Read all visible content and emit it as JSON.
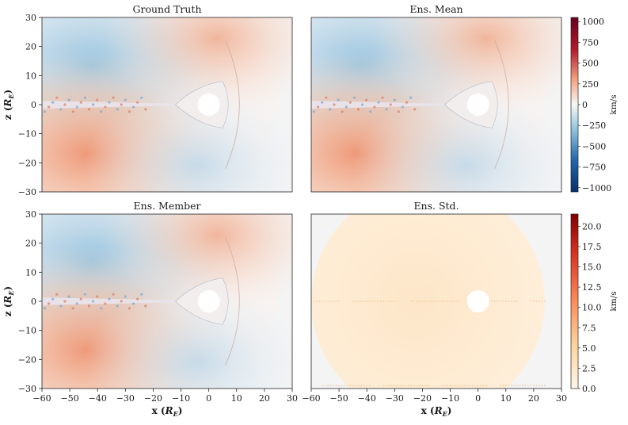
{
  "figure": {
    "panels": [
      {
        "title": "Ground Truth",
        "kind": "velocity"
      },
      {
        "title": "Ens. Mean",
        "kind": "velocity"
      },
      {
        "title": "Ens. Member",
        "kind": "velocity"
      },
      {
        "title": "Ens. Std.",
        "kind": "std"
      }
    ],
    "x_axis": {
      "label_prefix": "x (",
      "label_sub": "E",
      "label_var": "R",
      "label_suffix": ")",
      "range": [
        -60,
        30
      ],
      "ticks": [
        "−60",
        "−50",
        "−40",
        "−30",
        "−20",
        "−10",
        "0",
        "10",
        "20",
        "30"
      ]
    },
    "y_axis": {
      "label_prefix": "z (",
      "label_var": "R",
      "label_sub": "E",
      "label_suffix": ")",
      "range": [
        -30,
        30
      ],
      "ticks": [
        "30",
        "20",
        "10",
        "0",
        "−10",
        "−20",
        "−30"
      ]
    },
    "colorbar_velocity": {
      "label": "km/s",
      "ticks": [
        "1000",
        "750",
        "500",
        "250",
        "0",
        "−250",
        "−500",
        "−750",
        "−1000"
      ],
      "range": [
        -1050,
        1050
      ],
      "colors": [
        "#08306b",
        "#2166ac",
        "#92c5de",
        "#f7f7f7",
        "#f4a582",
        "#b2182b",
        "#67001f"
      ]
    },
    "colorbar_std": {
      "label": "km/s",
      "ticks": [
        "20.0",
        "17.5",
        "15.0",
        "12.5",
        "10.0",
        "7.5",
        "5.0",
        "2.5",
        "0.0"
      ],
      "range": [
        0,
        21.5
      ],
      "colors": [
        "#fff5eb",
        "#fdd49e",
        "#fc8d59",
        "#d7301f",
        "#7f0000"
      ]
    }
  }
}
